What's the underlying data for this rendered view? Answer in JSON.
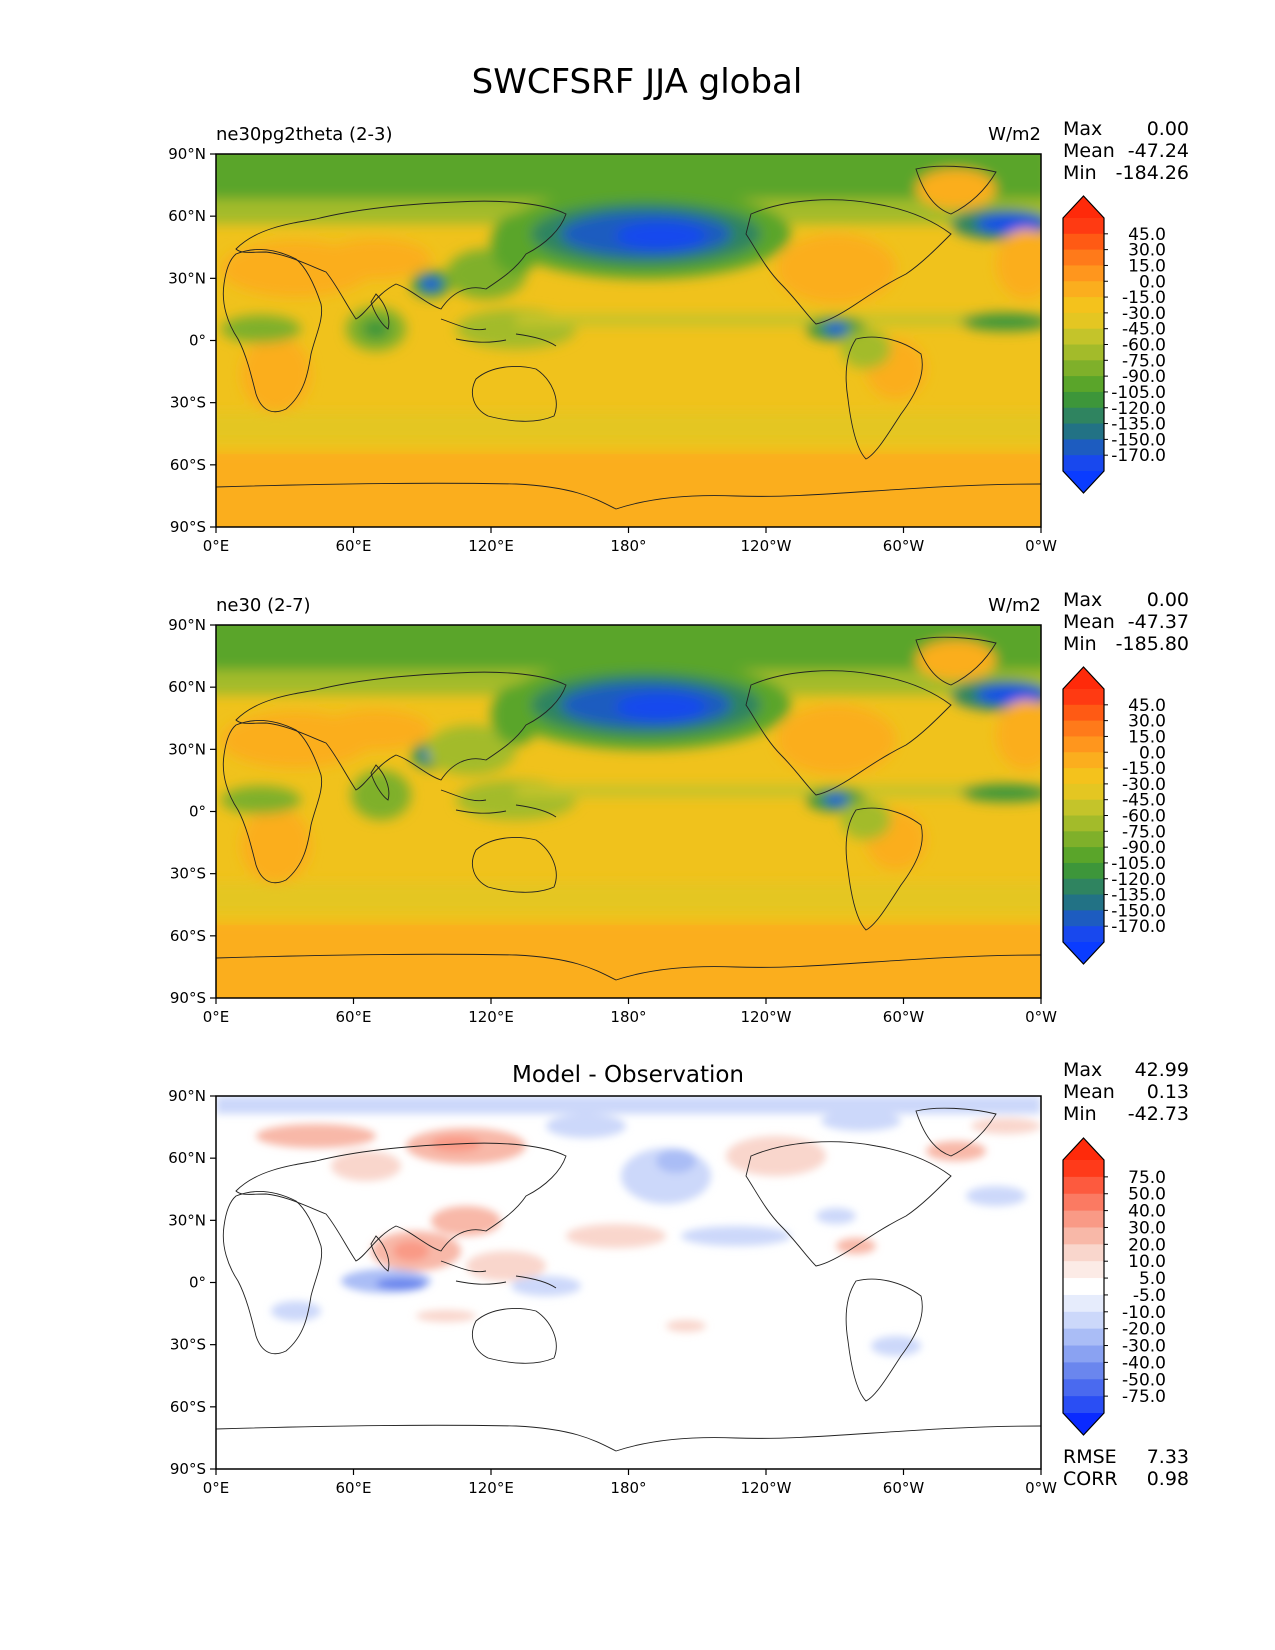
{
  "figure": {
    "title": "SWCFSRF JJA global"
  },
  "chart_data": [
    {
      "type": "heatmap",
      "panel": "model",
      "title_left": "ne30pg2theta (2-3)",
      "title_right": "W/m2",
      "stats": {
        "labels": [
          "Max",
          "Mean",
          "Min"
        ],
        "values": [
          "0.00",
          "-47.24",
          "-184.26"
        ]
      },
      "x_ticks": [
        "0°E",
        "60°E",
        "120°E",
        "180°",
        "120°W",
        "60°W",
        "0°W"
      ],
      "y_ticks": [
        "90°N",
        "60°N",
        "30°N",
        "0°",
        "30°S",
        "60°S",
        "90°S"
      ],
      "colorbar": {
        "levels": [
          "45.0",
          "30.0",
          "15.0",
          "0.0",
          "-15.0",
          "-30.0",
          "-45.0",
          "-60.0",
          "-75.0",
          "-90.0",
          "-105.0",
          "-120.0",
          "-135.0",
          "-150.0",
          "-170.0"
        ],
        "colors": [
          "#ff3a12",
          "#ff5a14",
          "#ff7a1a",
          "#ff961d",
          "#fbae1e",
          "#f4c21c",
          "#e4c622",
          "#c4c42a",
          "#a3bb2a",
          "#7fb02a",
          "#5aa52a",
          "#3d963a",
          "#2f8460",
          "#227285",
          "#1d5cc0",
          "#1848ee"
        ],
        "under_color": "#0a3cff",
        "over_color": "#ff2a0a"
      }
    },
    {
      "type": "heatmap",
      "panel": "reference",
      "title_left": "ne30 (2-7)",
      "title_right": "W/m2",
      "stats": {
        "labels": [
          "Max",
          "Mean",
          "Min"
        ],
        "values": [
          "0.00",
          "-47.37",
          "-185.80"
        ]
      },
      "x_ticks": [
        "0°E",
        "60°E",
        "120°E",
        "180°",
        "120°W",
        "60°W",
        "0°W"
      ],
      "y_ticks": [
        "90°N",
        "60°N",
        "30°N",
        "0°",
        "30°S",
        "60°S",
        "90°S"
      ],
      "colorbar": {
        "levels": [
          "45.0",
          "30.0",
          "15.0",
          "0.0",
          "-15.0",
          "-30.0",
          "-45.0",
          "-60.0",
          "-75.0",
          "-90.0",
          "-105.0",
          "-120.0",
          "-135.0",
          "-150.0",
          "-170.0"
        ],
        "colors": [
          "#ff3a12",
          "#ff5a14",
          "#ff7a1a",
          "#ff961d",
          "#fbae1e",
          "#f4c21c",
          "#e4c622",
          "#c4c42a",
          "#a3bb2a",
          "#7fb02a",
          "#5aa52a",
          "#3d963a",
          "#2f8460",
          "#227285",
          "#1d5cc0",
          "#1848ee"
        ],
        "under_color": "#0a3cff",
        "over_color": "#ff2a0a"
      }
    },
    {
      "type": "heatmap",
      "panel": "difference",
      "title_center": "Model - Observation",
      "stats": {
        "labels": [
          "Max",
          "Mean",
          "Min"
        ],
        "values": [
          "42.99",
          "0.13",
          "-42.73"
        ]
      },
      "footer_stats": {
        "labels": [
          "RMSE",
          "CORR"
        ],
        "values": [
          "7.33",
          "0.98"
        ]
      },
      "x_ticks": [
        "0°E",
        "60°E",
        "120°E",
        "180°",
        "120°W",
        "60°W",
        "0°W"
      ],
      "y_ticks": [
        "90°N",
        "60°N",
        "30°N",
        "0°",
        "30°S",
        "60°S",
        "90°S"
      ],
      "colorbar": {
        "levels": [
          "75.0",
          "50.0",
          "40.0",
          "30.0",
          "20.0",
          "10.0",
          "5.0",
          "-5.0",
          "-10.0",
          "-20.0",
          "-30.0",
          "-40.0",
          "-50.0",
          "-75.0"
        ],
        "colors": [
          "#ff3a1a",
          "#fd5a3e",
          "#fb7a62",
          "#f99a86",
          "#f8b8a8",
          "#f9d6cc",
          "#fcebe6",
          "#ffffff",
          "#e6ecfc",
          "#ccd8fa",
          "#aabdf6",
          "#8aa2f2",
          "#6a86ee",
          "#4a6aef",
          "#2a4ef4"
        ],
        "under_color": "#0a2aff",
        "over_color": "#ff2a0a"
      }
    }
  ]
}
